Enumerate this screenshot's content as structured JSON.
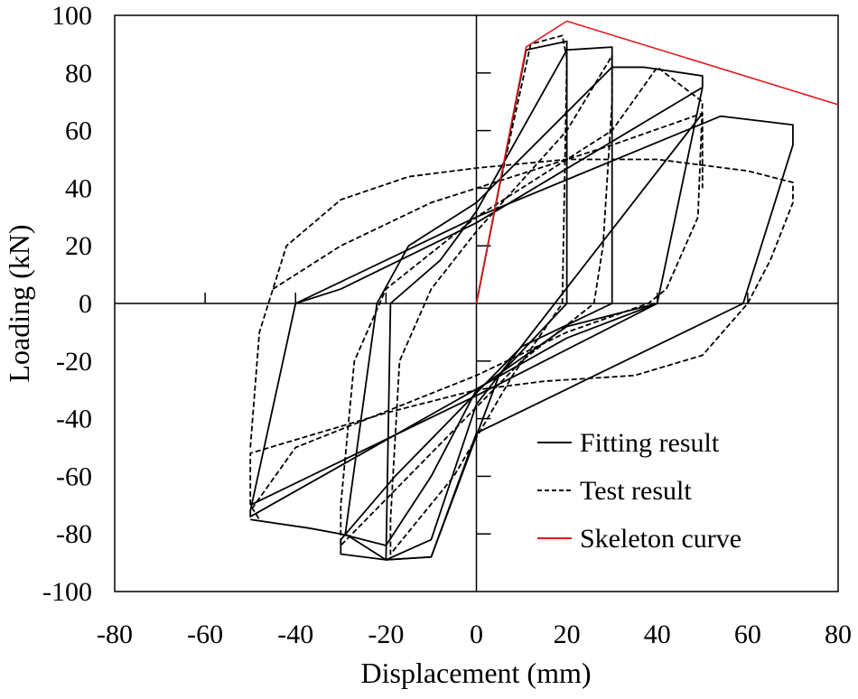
{
  "chart_data": {
    "type": "line",
    "title": "",
    "xlabel": "Displacement (mm)",
    "ylabel": "Loading (kN)",
    "xlim": [
      -80,
      80
    ],
    "ylim": [
      -100,
      100
    ],
    "xticks": [
      -80,
      -60,
      -40,
      -20,
      0,
      20,
      40,
      60,
      80
    ],
    "yticks": [
      100,
      80,
      60,
      40,
      20,
      0,
      -20,
      -40,
      -60,
      -80,
      -100
    ],
    "grid": false,
    "legend_position": "bottom-right",
    "colors": {
      "fitting": "#000000",
      "test": "#000000",
      "skeleton": "#e0191e"
    },
    "series": [
      {
        "name": "Fitting result",
        "style": "solid",
        "segments": [
          [
            [
              0,
              0
            ],
            [
              11,
              88
            ],
            [
              20,
              91
            ],
            [
              20,
              0
            ],
            [
              5,
              -25
            ],
            [
              -10,
              -88
            ],
            [
              -20,
              -89
            ],
            [
              -19,
              0
            ],
            [
              -8,
              15
            ],
            [
              0,
              32
            ],
            [
              20,
              88
            ],
            [
              30,
              89
            ],
            [
              30,
              0
            ],
            [
              10,
              -15
            ],
            [
              -18,
              -60
            ],
            [
              -30,
              -82
            ],
            [
              -30,
              -87
            ],
            [
              -20,
              -89
            ],
            [
              -29,
              -80
            ],
            [
              -22,
              0
            ],
            [
              -15,
              20
            ],
            [
              0,
              35
            ],
            [
              30,
              82
            ],
            [
              37,
              82
            ],
            [
              50,
              79
            ],
            [
              50,
              75
            ],
            [
              40,
              0
            ],
            [
              20,
              -12
            ],
            [
              -50,
              -74
            ],
            [
              -50,
              -72
            ],
            [
              -40,
              0
            ],
            [
              -30,
              5
            ],
            [
              0,
              28
            ],
            [
              50,
              75
            ]
          ],
          [
            [
              40,
              0
            ],
            [
              0,
              -32
            ],
            [
              -50,
              -70
            ]
          ],
          [
            [
              -40,
              0
            ],
            [
              0,
              30
            ],
            [
              54,
              65
            ],
            [
              70,
              62
            ],
            [
              70,
              55
            ],
            [
              59,
              0
            ],
            [
              0,
              -45
            ],
            [
              -10,
              -88
            ],
            [
              -20,
              -89
            ],
            [
              -10,
              -82
            ],
            [
              0,
              -35
            ],
            [
              50,
              66
            ]
          ],
          [
            [
              -50,
              -75
            ],
            [
              -37,
              -78
            ],
            [
              -30,
              -80
            ],
            [
              -20,
              -84
            ],
            [
              -10,
              -60
            ],
            [
              0,
              -30
            ],
            [
              20,
              -8
            ],
            [
              40,
              0
            ]
          ]
        ]
      },
      {
        "name": "Test result",
        "style": "dashed",
        "segments": [
          [
            [
              -50,
              -50
            ],
            [
              -48,
              -10
            ],
            [
              -42,
              20
            ],
            [
              -30,
              36
            ],
            [
              -15,
              44
            ],
            [
              0,
              47
            ],
            [
              20,
              50
            ],
            [
              40,
              50
            ],
            [
              60,
              46
            ],
            [
              70,
              42
            ],
            [
              70,
              35
            ],
            [
              65,
              15
            ],
            [
              60,
              0
            ],
            [
              50,
              -18
            ],
            [
              35,
              -25
            ],
            [
              15,
              -27
            ],
            [
              0,
              -30
            ],
            [
              -20,
              -38
            ],
            [
              -35,
              -45
            ],
            [
              -50,
              -52
            ],
            [
              -50,
              -70
            ],
            [
              -48,
              -75
            ]
          ],
          [
            [
              0,
              0
            ],
            [
              5,
              40
            ],
            [
              12,
              90
            ],
            [
              19,
              93
            ],
            [
              20,
              85
            ],
            [
              19,
              0
            ],
            [
              8,
              -25
            ],
            [
              -5,
              -60
            ],
            [
              -19,
              -87
            ],
            [
              -19,
              -75
            ],
            [
              -17,
              -20
            ],
            [
              -10,
              5
            ],
            [
              0,
              25
            ],
            [
              20,
              60
            ],
            [
              30,
              86
            ],
            [
              30,
              70
            ],
            [
              28,
              20
            ],
            [
              26,
              0
            ],
            [
              10,
              -20
            ],
            [
              -30,
              -84
            ],
            [
              -30,
              -70
            ],
            [
              -27,
              -20
            ],
            [
              -20,
              5
            ],
            [
              0,
              30
            ],
            [
              30,
              60
            ],
            [
              40,
              82
            ],
            [
              50,
              70
            ],
            [
              49,
              30
            ],
            [
              42,
              5
            ],
            [
              38,
              0
            ],
            [
              20,
              -10
            ],
            [
              0,
              -25
            ],
            [
              -40,
              -50
            ],
            [
              -50,
              -72
            ]
          ],
          [
            [
              -45,
              5
            ],
            [
              -30,
              20
            ],
            [
              -10,
              35
            ],
            [
              10,
              45
            ],
            [
              30,
              55
            ],
            [
              50,
              66
            ],
            [
              50,
              40
            ]
          ]
        ]
      },
      {
        "name": "Skeleton curve",
        "style": "solid-red",
        "segments": [
          [
            [
              0,
              0
            ],
            [
              11,
              89
            ],
            [
              20,
              98
            ],
            [
              80,
              69
            ]
          ]
        ]
      }
    ]
  }
}
